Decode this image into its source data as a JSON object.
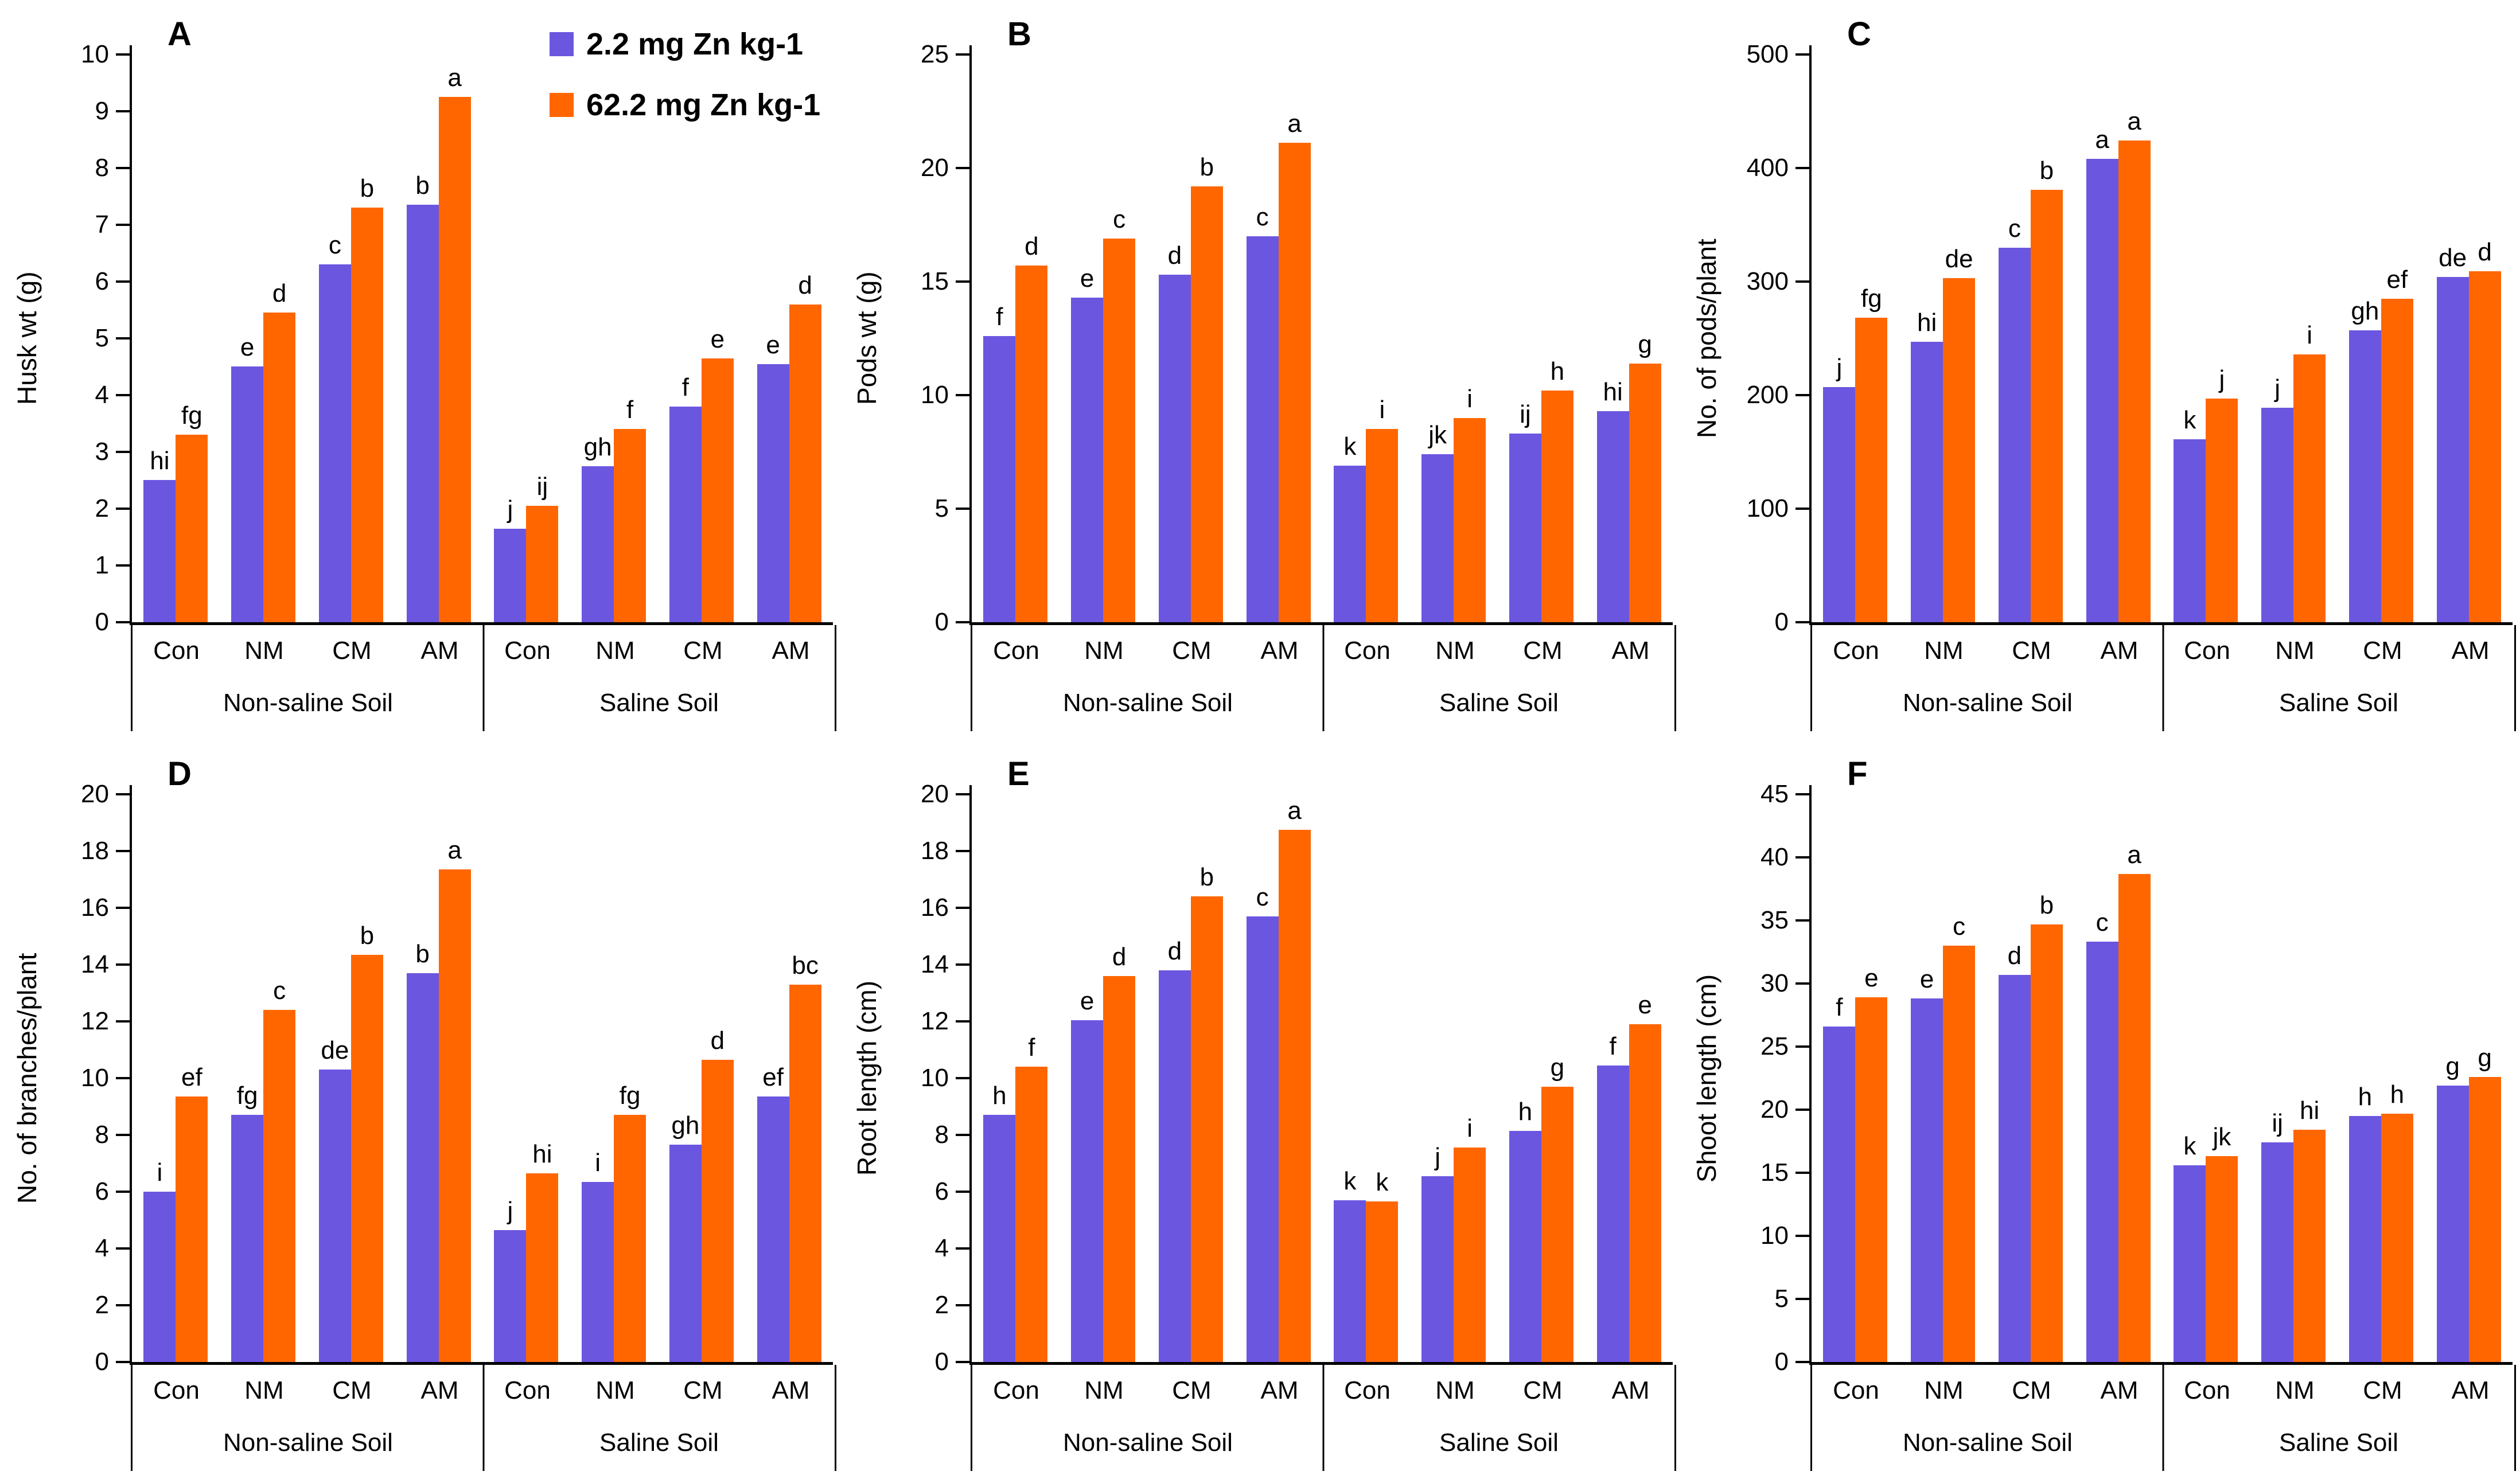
{
  "legend": {
    "items": [
      {
        "label": "2.2 mg Zn kg-1",
        "color": "#6B56E0"
      },
      {
        "label": "62.2 mg Zn kg-1",
        "color": "#FF6600"
      }
    ]
  },
  "axis_color": "#000000",
  "chart_data": [
    {
      "panel_letter": "A",
      "type": "bar",
      "ylabel": "Husk wt (g)",
      "ylim": [
        0,
        10
      ],
      "yticks": [
        0,
        1,
        2,
        3,
        4,
        5,
        6,
        7,
        8,
        9,
        10
      ],
      "categories": [
        "Con",
        "NM",
        "CM",
        "AM",
        "Con",
        "NM",
        "CM",
        "AM"
      ],
      "group_labels": [
        "Non-saline Soil",
        "Saline Soil"
      ],
      "series": [
        {
          "name": "2.2 mg Zn kg-1",
          "values": [
            2.5,
            4.5,
            6.3,
            7.35,
            1.65,
            2.75,
            3.8,
            4.55
          ],
          "letters": [
            "hi",
            "e",
            "c",
            "b",
            "j",
            "gh",
            "f",
            "e"
          ]
        },
        {
          "name": "62.2 mg Zn kg-1",
          "values": [
            3.3,
            5.45,
            7.3,
            9.25,
            2.05,
            3.4,
            4.65,
            5.6
          ],
          "letters": [
            "fg",
            "d",
            "b",
            "a",
            "ij",
            "f",
            "e",
            "d"
          ]
        }
      ]
    },
    {
      "panel_letter": "B",
      "type": "bar",
      "ylabel": "Pods wt (g)",
      "ylim": [
        0,
        25
      ],
      "yticks": [
        0,
        5,
        10,
        15,
        20,
        25
      ],
      "categories": [
        "Con",
        "NM",
        "CM",
        "AM",
        "Con",
        "NM",
        "CM",
        "AM"
      ],
      "group_labels": [
        "Non-saline Soil",
        "Saline Soil"
      ],
      "series": [
        {
          "name": "2.2 mg Zn kg-1",
          "values": [
            12.6,
            14.3,
            15.3,
            17.0,
            6.9,
            7.4,
            8.3,
            9.3
          ],
          "letters": [
            "f",
            "e",
            "d",
            "c",
            "k",
            "jk",
            "ij",
            "hi"
          ]
        },
        {
          "name": "62.2 mg Zn kg-1",
          "values": [
            15.7,
            16.9,
            19.2,
            21.1,
            8.5,
            9.0,
            10.2,
            11.4
          ],
          "letters": [
            "d",
            "c",
            "b",
            "a",
            "i",
            "i",
            "h",
            "g"
          ]
        }
      ]
    },
    {
      "panel_letter": "C",
      "type": "bar",
      "ylabel": "No. of pods/plant",
      "ylim": [
        0,
        500
      ],
      "yticks": [
        0,
        100,
        200,
        300,
        400,
        500
      ],
      "categories": [
        "Con",
        "NM",
        "CM",
        "AM",
        "Con",
        "NM",
        "CM",
        "AM"
      ],
      "group_labels": [
        "Non-saline Soil",
        "Saline Soil"
      ],
      "series": [
        {
          "name": "2.2 mg Zn kg-1",
          "values": [
            207,
            247,
            330,
            408,
            161,
            189,
            257,
            304
          ],
          "letters": [
            "j",
            "hi",
            "c",
            "a",
            "k",
            "j",
            "gh",
            "de"
          ]
        },
        {
          "name": "62.2 mg Zn kg-1",
          "values": [
            268,
            303,
            381,
            424,
            197,
            236,
            285,
            309
          ],
          "letters": [
            "fg",
            "de",
            "b",
            "a",
            "j",
            "i",
            "ef",
            "d"
          ]
        }
      ]
    },
    {
      "panel_letter": "D",
      "type": "bar",
      "ylabel": "No. of branches/plant",
      "ylim": [
        0,
        20
      ],
      "yticks": [
        0,
        2,
        4,
        6,
        8,
        10,
        12,
        14,
        16,
        18,
        20
      ],
      "categories": [
        "Con",
        "NM",
        "CM",
        "AM",
        "Con",
        "NM",
        "CM",
        "AM"
      ],
      "group_labels": [
        "Non-saline Soil",
        "Saline Soil"
      ],
      "series": [
        {
          "name": "2.2 mg Zn kg-1",
          "values": [
            6.0,
            8.7,
            10.3,
            13.7,
            4.65,
            6.35,
            7.65,
            9.35
          ],
          "letters": [
            "i",
            "fg",
            "de",
            "b",
            "j",
            "i",
            "gh",
            "ef"
          ]
        },
        {
          "name": "62.2 mg Zn kg-1",
          "values": [
            9.35,
            12.4,
            14.35,
            17.35,
            6.65,
            8.7,
            10.65,
            13.3
          ],
          "letters": [
            "ef",
            "c",
            "b",
            "a",
            "hi",
            "fg",
            "d",
            "bc"
          ]
        }
      ]
    },
    {
      "panel_letter": "E",
      "type": "bar",
      "ylabel": "Root length (cm)",
      "ylim": [
        0,
        20
      ],
      "yticks": [
        0,
        2,
        4,
        6,
        8,
        10,
        12,
        14,
        16,
        18,
        20
      ],
      "categories": [
        "Con",
        "NM",
        "CM",
        "AM",
        "Con",
        "NM",
        "CM",
        "AM"
      ],
      "group_labels": [
        "Non-saline Soil",
        "Saline Soil"
      ],
      "series": [
        {
          "name": "2.2 mg Zn kg-1",
          "values": [
            8.7,
            12.05,
            13.8,
            15.7,
            5.7,
            6.55,
            8.15,
            10.45
          ],
          "letters": [
            "h",
            "e",
            "d",
            "c",
            "k",
            "j",
            "h",
            "f"
          ]
        },
        {
          "name": "62.2 mg Zn kg-1",
          "values": [
            10.4,
            13.6,
            16.4,
            18.75,
            5.65,
            7.55,
            9.7,
            11.9
          ],
          "letters": [
            "f",
            "d",
            "b",
            "a",
            "k",
            "i",
            "g",
            "e"
          ]
        }
      ]
    },
    {
      "panel_letter": "F",
      "type": "bar",
      "ylabel": "Shoot length (cm)",
      "ylim": [
        0,
        45
      ],
      "yticks": [
        0,
        5,
        10,
        15,
        20,
        25,
        30,
        35,
        40,
        45
      ],
      "categories": [
        "Con",
        "NM",
        "CM",
        "AM",
        "Con",
        "NM",
        "CM",
        "AM"
      ],
      "group_labels": [
        "Non-saline Soil",
        "Saline Soil"
      ],
      "series": [
        {
          "name": "2.2 mg Zn kg-1",
          "values": [
            26.6,
            28.8,
            30.7,
            33.3,
            15.6,
            17.4,
            19.5,
            21.9
          ],
          "letters": [
            "f",
            "e",
            "d",
            "c",
            "k",
            "ij",
            "h",
            "g"
          ]
        },
        {
          "name": "62.2 mg Zn kg-1",
          "values": [
            28.9,
            33.0,
            34.7,
            38.7,
            16.3,
            18.4,
            19.7,
            22.6
          ],
          "letters": [
            "e",
            "c",
            "b",
            "a",
            "jk",
            "hi",
            "h",
            "g"
          ]
        }
      ]
    }
  ]
}
